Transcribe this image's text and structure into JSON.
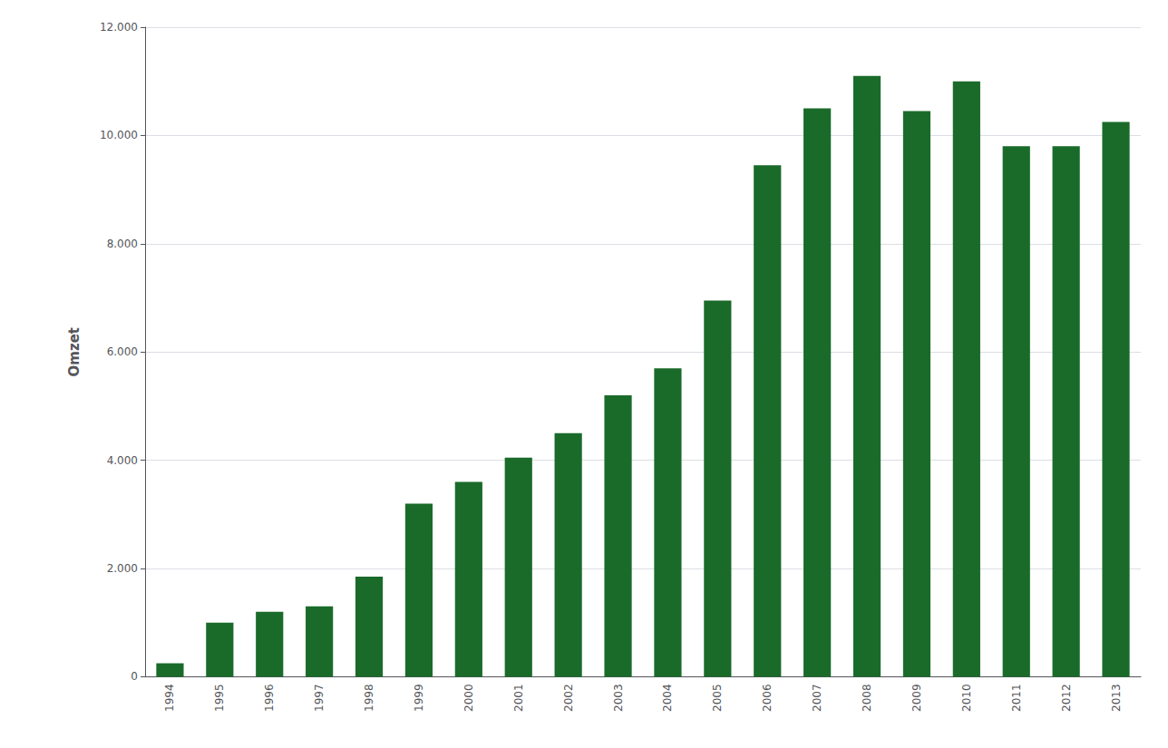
{
  "chart_data": {
    "type": "bar",
    "ylabel": "Omzet",
    "categories": [
      "1994",
      "1995",
      "1996",
      "1997",
      "1998",
      "1999",
      "2000",
      "2001",
      "2002",
      "2003",
      "2004",
      "2005",
      "2006",
      "2007",
      "2008",
      "2009",
      "2010",
      "2011",
      "2012",
      "2013"
    ],
    "values": [
      250,
      1000,
      1200,
      1300,
      1850,
      3200,
      3600,
      4050,
      4500,
      5200,
      5700,
      6950,
      9450,
      10500,
      11100,
      10450,
      11000,
      9800,
      9800,
      10250
    ],
    "color": "#1a6b2a",
    "ylim": [
      0,
      12000
    ],
    "yticks": [
      0,
      {
        "value": 2000,
        "label": "2.000"
      },
      {
        "value": 4000,
        "label": "4.000"
      },
      {
        "value": 6000,
        "label": "6.000"
      },
      {
        "value": 8000,
        "label": "8.000"
      },
      {
        "value": 10000,
        "label": "10.000"
      },
      {
        "value": 12000,
        "label": "12.000"
      }
    ],
    "grid": true
  }
}
